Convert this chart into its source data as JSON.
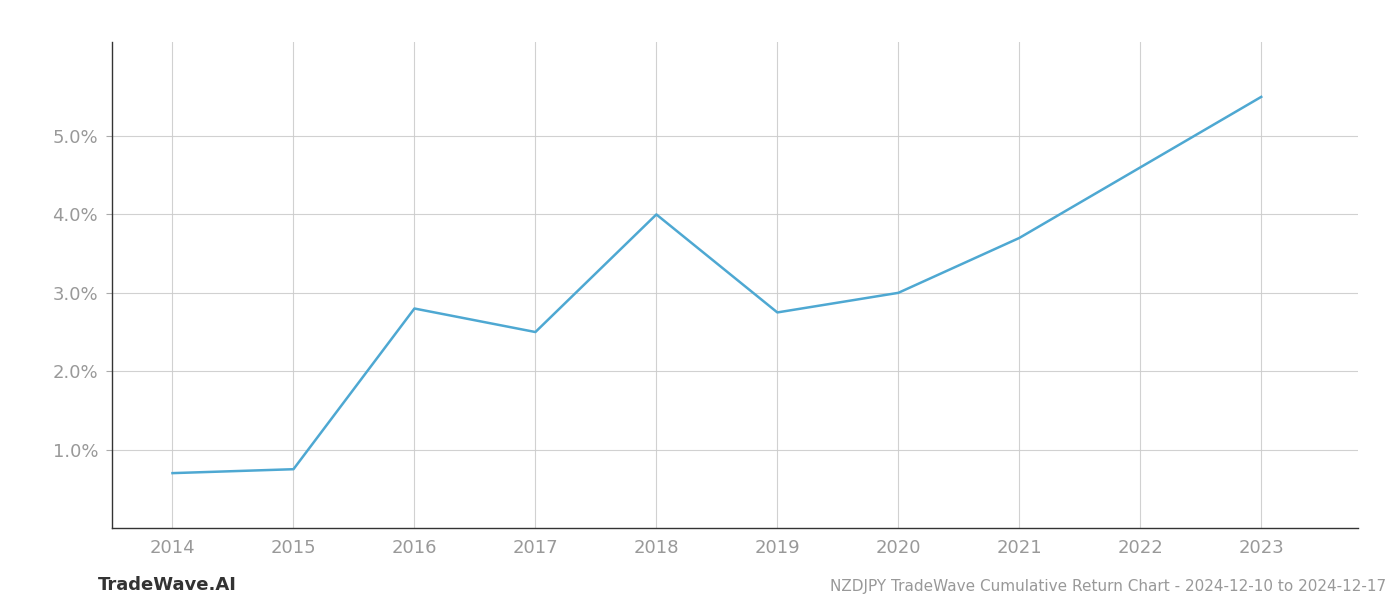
{
  "x": [
    2014,
    2015,
    2016,
    2017,
    2018,
    2019,
    2020,
    2021,
    2022,
    2023
  ],
  "y": [
    0.007,
    0.0075,
    0.028,
    0.025,
    0.04,
    0.0275,
    0.03,
    0.037,
    0.046,
    0.055
  ],
  "line_color": "#4ea8d2",
  "line_width": 1.8,
  "background_color": "#ffffff",
  "grid_color": "#cccccc",
  "title": "NZDJPY TradeWave Cumulative Return Chart - 2024-12-10 to 2024-12-17",
  "watermark": "TradeWave.AI",
  "xlim": [
    2013.5,
    2023.8
  ],
  "ylim": [
    0.0,
    0.062
  ],
  "yticks": [
    0.01,
    0.02,
    0.03,
    0.04,
    0.05
  ],
  "xticks": [
    2014,
    2015,
    2016,
    2017,
    2018,
    2019,
    2020,
    2021,
    2022,
    2023
  ],
  "tick_color": "#999999",
  "tick_fontsize": 13,
  "title_fontsize": 11,
  "watermark_fontsize": 13
}
